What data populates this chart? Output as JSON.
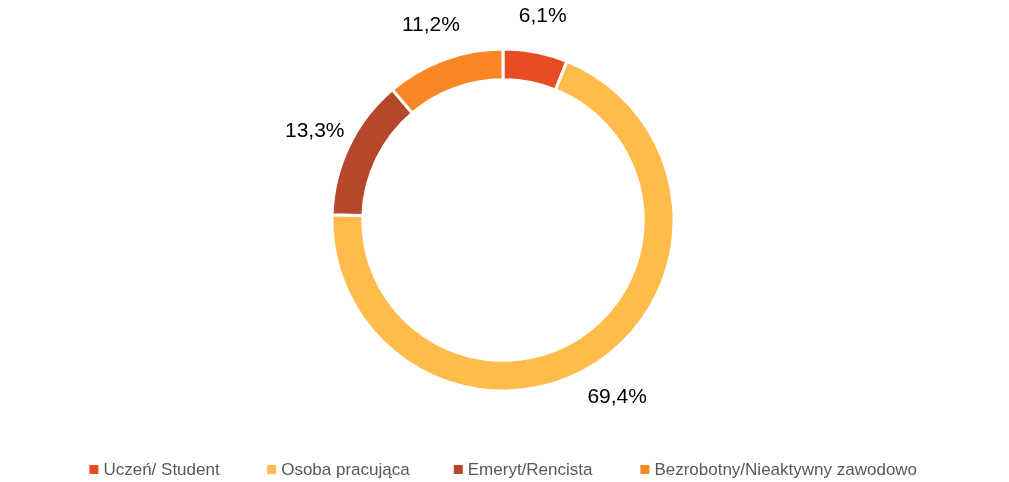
{
  "chart_data": {
    "type": "donut",
    "categories": [
      "Uczeń/ Student",
      "Osoba pracująca",
      "Emeryt/Rencista",
      "Bezrobotny/Nieaktywny zawodowo"
    ],
    "values": [
      6.1,
      69.4,
      13.3,
      11.2
    ],
    "colors": [
      "#e84c22",
      "#ffbc4a",
      "#b5472a",
      "#fb8626"
    ],
    "value_labels": [
      "6,1%",
      "69,4%",
      "13,3%",
      "11,2%"
    ],
    "legend": "bottom"
  }
}
